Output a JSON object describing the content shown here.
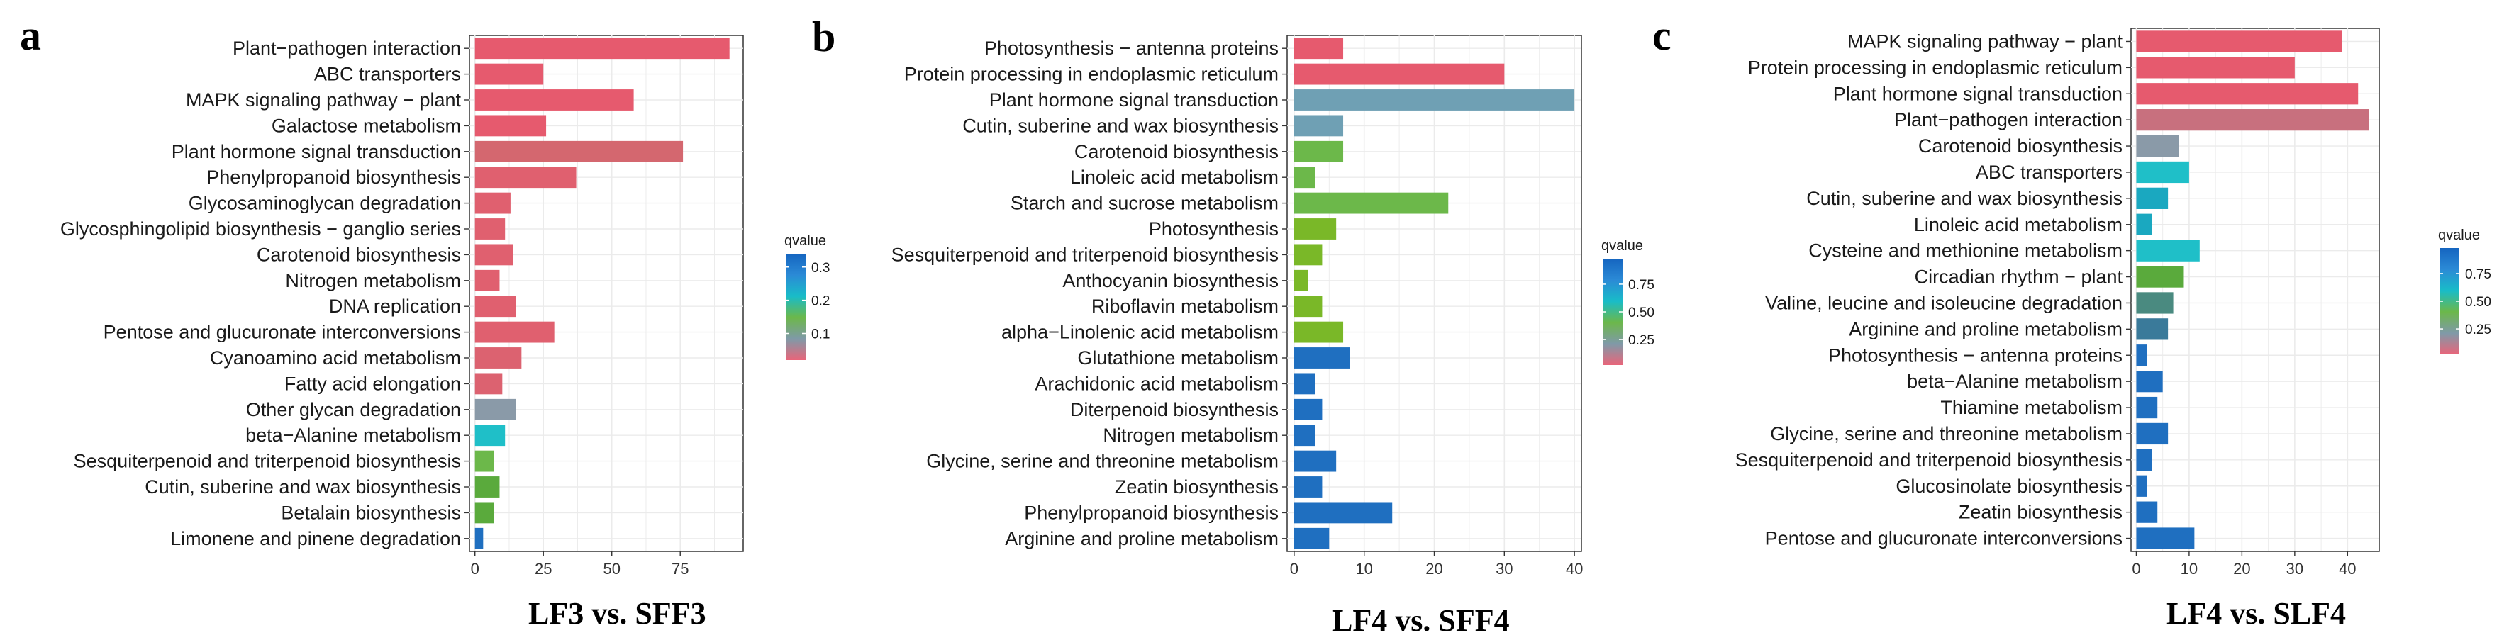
{
  "chart_data": [
    {
      "type": "bar",
      "orientation": "horizontal",
      "panel_letter": "a",
      "caption": "LF3 vs. SFF3",
      "highlight_category": "Plant hormone signal transduction",
      "highlight_color": "#e8281e",
      "categories": [
        "Plant−pathogen interaction",
        "ABC transporters",
        "MAPK signaling pathway − plant",
        "Galactose metabolism",
        "Plant hormone signal transduction",
        "Phenylpropanoid biosynthesis",
        "Glycosaminoglycan degradation",
        "Glycosphingolipid biosynthesis − ganglio series",
        "Carotenoid biosynthesis",
        "Nitrogen metabolism",
        "DNA replication",
        "Pentose and glucuronate interconversions",
        "Cyanoamino acid metabolism",
        "Fatty acid elongation",
        "Other glycan degradation",
        "beta−Alanine metabolism",
        "Sesquiterpenoid and triterpenoid biosynthesis",
        "Cutin, suberine and wax biosynthesis",
        "Betalain biosynthesis",
        "Limonene and pinene degradation"
      ],
      "values": [
        93,
        25,
        58,
        26,
        76,
        37,
        13,
        11,
        14,
        9,
        15,
        29,
        17,
        10,
        15,
        11,
        7,
        9,
        7,
        3
      ],
      "colors": [
        "#e65a6e",
        "#e65a6e",
        "#e65a6e",
        "#e65a6e",
        "#d4676f",
        "#e0606f",
        "#e0606f",
        "#e0606f",
        "#e0606f",
        "#e0606f",
        "#e0606f",
        "#e0606f",
        "#dc6270",
        "#dc6270",
        "#8a9aa8",
        "#1fbfc8",
        "#6cb84a",
        "#5aaa3c",
        "#5aaa3c",
        "#1f6fc0"
      ],
      "xticks": [
        0,
        25,
        50,
        75
      ],
      "xlim": [
        -2,
        98
      ],
      "legend": {
        "title": "qvalue",
        "ticks": [
          "0.3",
          "0.2",
          "0.1"
        ],
        "tick_positions": [
          0.3,
          0.2,
          0.1
        ],
        "range": [
          0.02,
          0.34
        ]
      }
    },
    {
      "type": "bar",
      "orientation": "horizontal",
      "panel_letter": "b",
      "caption": "LF4 vs. SFF4",
      "highlight_category": "Plant hormone signal transduction",
      "highlight_color": "#e8281e",
      "categories": [
        "Photosynthesis − antenna proteins",
        "Protein processing in endoplasmic reticulum",
        "Plant hormone signal transduction",
        "Cutin, suberine and wax biosynthesis",
        "Carotenoid biosynthesis",
        "Linoleic acid metabolism",
        "Starch and sucrose metabolism",
        "Photosynthesis",
        "Sesquiterpenoid and triterpenoid biosynthesis",
        "Anthocyanin biosynthesis",
        "Riboflavin metabolism",
        "alpha−Linolenic acid metabolism",
        "Glutathione metabolism",
        "Arachidonic acid metabolism",
        "Diterpenoid biosynthesis",
        "Nitrogen metabolism",
        "Glycine, serine and threonine metabolism",
        "Zeatin biosynthesis",
        "Phenylpropanoid biosynthesis",
        "Arginine and proline metabolism"
      ],
      "values": [
        7,
        30,
        40,
        7,
        7,
        3,
        22,
        6,
        4,
        2,
        4,
        7,
        8,
        3,
        4,
        3,
        6,
        4,
        14,
        5
      ],
      "colors": [
        "#e65a6e",
        "#e65a6e",
        "#6fa0b4",
        "#6fa0b4",
        "#6cb84a",
        "#6cb84a",
        "#6cb84a",
        "#7ab828",
        "#7ab828",
        "#7ab828",
        "#7ab828",
        "#7ab828",
        "#1f6fc0",
        "#1f6fc0",
        "#1f6fc0",
        "#1f6fc0",
        "#1f6fc0",
        "#1f6fc0",
        "#1f6fc0",
        "#1f6fc0"
      ],
      "xticks": [
        0,
        10,
        20,
        30,
        40
      ],
      "xlim": [
        -1,
        41
      ],
      "legend": {
        "title": "qvalue",
        "ticks": [
          "0.75",
          "0.50",
          "0.25"
        ],
        "tick_positions": [
          0.75,
          0.5,
          0.25
        ],
        "range": [
          0.02,
          0.98
        ]
      }
    },
    {
      "type": "bar",
      "orientation": "horizontal",
      "panel_letter": "c",
      "caption": "LF4 vs. SLF4",
      "highlight_category": "Plant hormone signal transduction",
      "highlight_color": "#e8281e",
      "categories": [
        "MAPK signaling pathway − plant",
        "Protein processing in endoplasmic reticulum",
        "Plant hormone signal transduction",
        "Plant−pathogen interaction",
        "Carotenoid biosynthesis",
        "ABC transporters",
        "Cutin, suberine and wax biosynthesis",
        "Linoleic acid metabolism",
        "Cysteine and methionine metabolism",
        "Circadian rhythm − plant",
        "Valine, leucine and isoleucine degradation",
        "Arginine and proline metabolism",
        "Photosynthesis − antenna proteins",
        "beta−Alanine metabolism",
        "Thiamine metabolism",
        "Glycine, serine and threonine metabolism",
        "Sesquiterpenoid and triterpenoid biosynthesis",
        "Glucosinolate biosynthesis",
        "Zeatin biosynthesis",
        "Pentose and glucuronate interconversions"
      ],
      "values": [
        39,
        30,
        42,
        44,
        8,
        10,
        6,
        3,
        12,
        9,
        7,
        6,
        2,
        5,
        4,
        6,
        3,
        2,
        4,
        11
      ],
      "colors": [
        "#e65a6e",
        "#e65a6e",
        "#e65a6e",
        "#c8707e",
        "#8a9aa8",
        "#1fbfc8",
        "#1aa8c0",
        "#1aa8c0",
        "#1fbfc8",
        "#5aaa3c",
        "#4a8a80",
        "#3a7a9a",
        "#1f6fc0",
        "#1f6fc0",
        "#1f6fc0",
        "#1f6fc0",
        "#1f6fc0",
        "#1f6fc0",
        "#1f6fc0",
        "#1f6fc0"
      ],
      "xticks": [
        0,
        10,
        20,
        30,
        40
      ],
      "xlim": [
        -1,
        46
      ],
      "legend": {
        "title": "qvalue",
        "ticks": [
          "0.75",
          "0.50",
          "0.25"
        ],
        "tick_positions": [
          0.75,
          0.5,
          0.25
        ],
        "range": [
          0.02,
          0.98
        ]
      }
    }
  ]
}
